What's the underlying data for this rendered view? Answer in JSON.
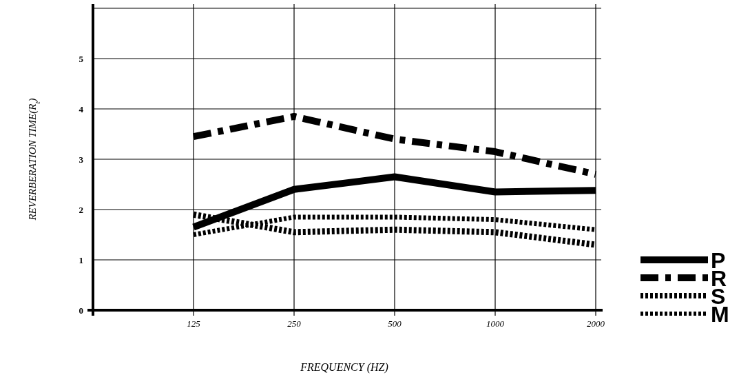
{
  "chart_data": {
    "type": "line",
    "xlabel": "FREQUENCY   (HZ)",
    "ylabel": "REVERBERATION TIME(R$_{t}$)",
    "x": [
      125,
      250,
      500,
      1000,
      2000
    ],
    "log": "x",
    "xlim": [
      62.5,
      2000
    ],
    "xticks": [
      125,
      250,
      500,
      1000,
      2000
    ],
    "ylim": [
      0,
      6
    ],
    "yticks": [
      0,
      1,
      2,
      3,
      4,
      5,
      {
        "value": 6,
        "label": null
      }
    ],
    "grid": true,
    "legend": "right",
    "marker": "none",
    "series": [
      {
        "name": "P",
        "color": "#000000",
        "line_style": "solid",
        "values": [
          1.65,
          2.4,
          2.65,
          2.35,
          2.38
        ]
      },
      {
        "name": "R",
        "color": "#000000",
        "line_style": "dashed",
        "values": [
          3.45,
          3.85,
          3.4,
          3.15,
          2.7
        ]
      },
      {
        "name": "S",
        "color": "#000000",
        "line_style": "dotted",
        "values": [
          1.9,
          1.55,
          1.6,
          1.55,
          1.3
        ]
      },
      {
        "name": "M",
        "color": "#000000",
        "line_style": "dotted",
        "values": [
          1.5,
          1.85,
          1.85,
          1.8,
          1.6
        ]
      }
    ]
  }
}
